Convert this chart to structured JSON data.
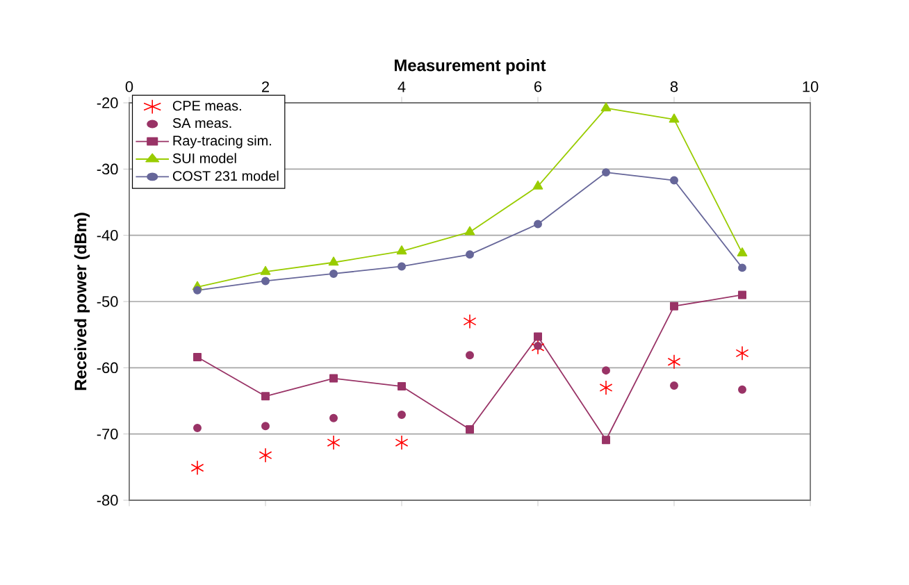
{
  "chart_data": {
    "type": "line",
    "xlabel": "Measurement point",
    "ylabel": "Received power (dBm)",
    "x": [
      1,
      2,
      3,
      4,
      5,
      6,
      7,
      8,
      9
    ],
    "xlim": [
      0,
      10
    ],
    "xticks": [
      0,
      2,
      4,
      6,
      8,
      10
    ],
    "ylim": [
      -80,
      -20
    ],
    "yticks": [
      -80,
      -70,
      -60,
      -50,
      -40,
      -30,
      -20
    ],
    "grid": "y",
    "legend": "top left",
    "series": [
      {
        "name": "CPE meas.",
        "type": "scatter",
        "marker": "cross",
        "color": "#ff0000",
        "values": [
          -75.1,
          -73.2,
          -71.3,
          -71.3,
          -53.0,
          -56.9,
          -63.0,
          -59.1,
          -57.8
        ]
      },
      {
        "name": "SA meas.",
        "type": "scatter",
        "marker": "circle",
        "color": "#993366",
        "values": [
          -69.1,
          -68.8,
          -67.6,
          -67.1,
          -58.1,
          -56.7,
          -60.4,
          -62.7,
          -63.3
        ]
      },
      {
        "name": "Ray-tracing sim.",
        "type": "line",
        "marker": "square",
        "color": "#993366",
        "values": [
          -58.4,
          -64.3,
          -61.6,
          -62.8,
          -69.3,
          -55.3,
          -70.9,
          -50.7,
          -49.0
        ]
      },
      {
        "name": "SUI model",
        "type": "line",
        "marker": "triangle",
        "color": "#99cc00",
        "values": [
          -47.8,
          -45.5,
          -44.1,
          -42.4,
          -39.5,
          -32.6,
          -20.8,
          -22.5,
          -42.7
        ]
      },
      {
        "name": "COST 231 model",
        "type": "line",
        "marker": "circle",
        "color": "#666699",
        "values": [
          -48.3,
          -46.9,
          -45.8,
          -44.7,
          -42.9,
          -38.3,
          -30.5,
          -31.7,
          -44.9
        ]
      }
    ]
  }
}
